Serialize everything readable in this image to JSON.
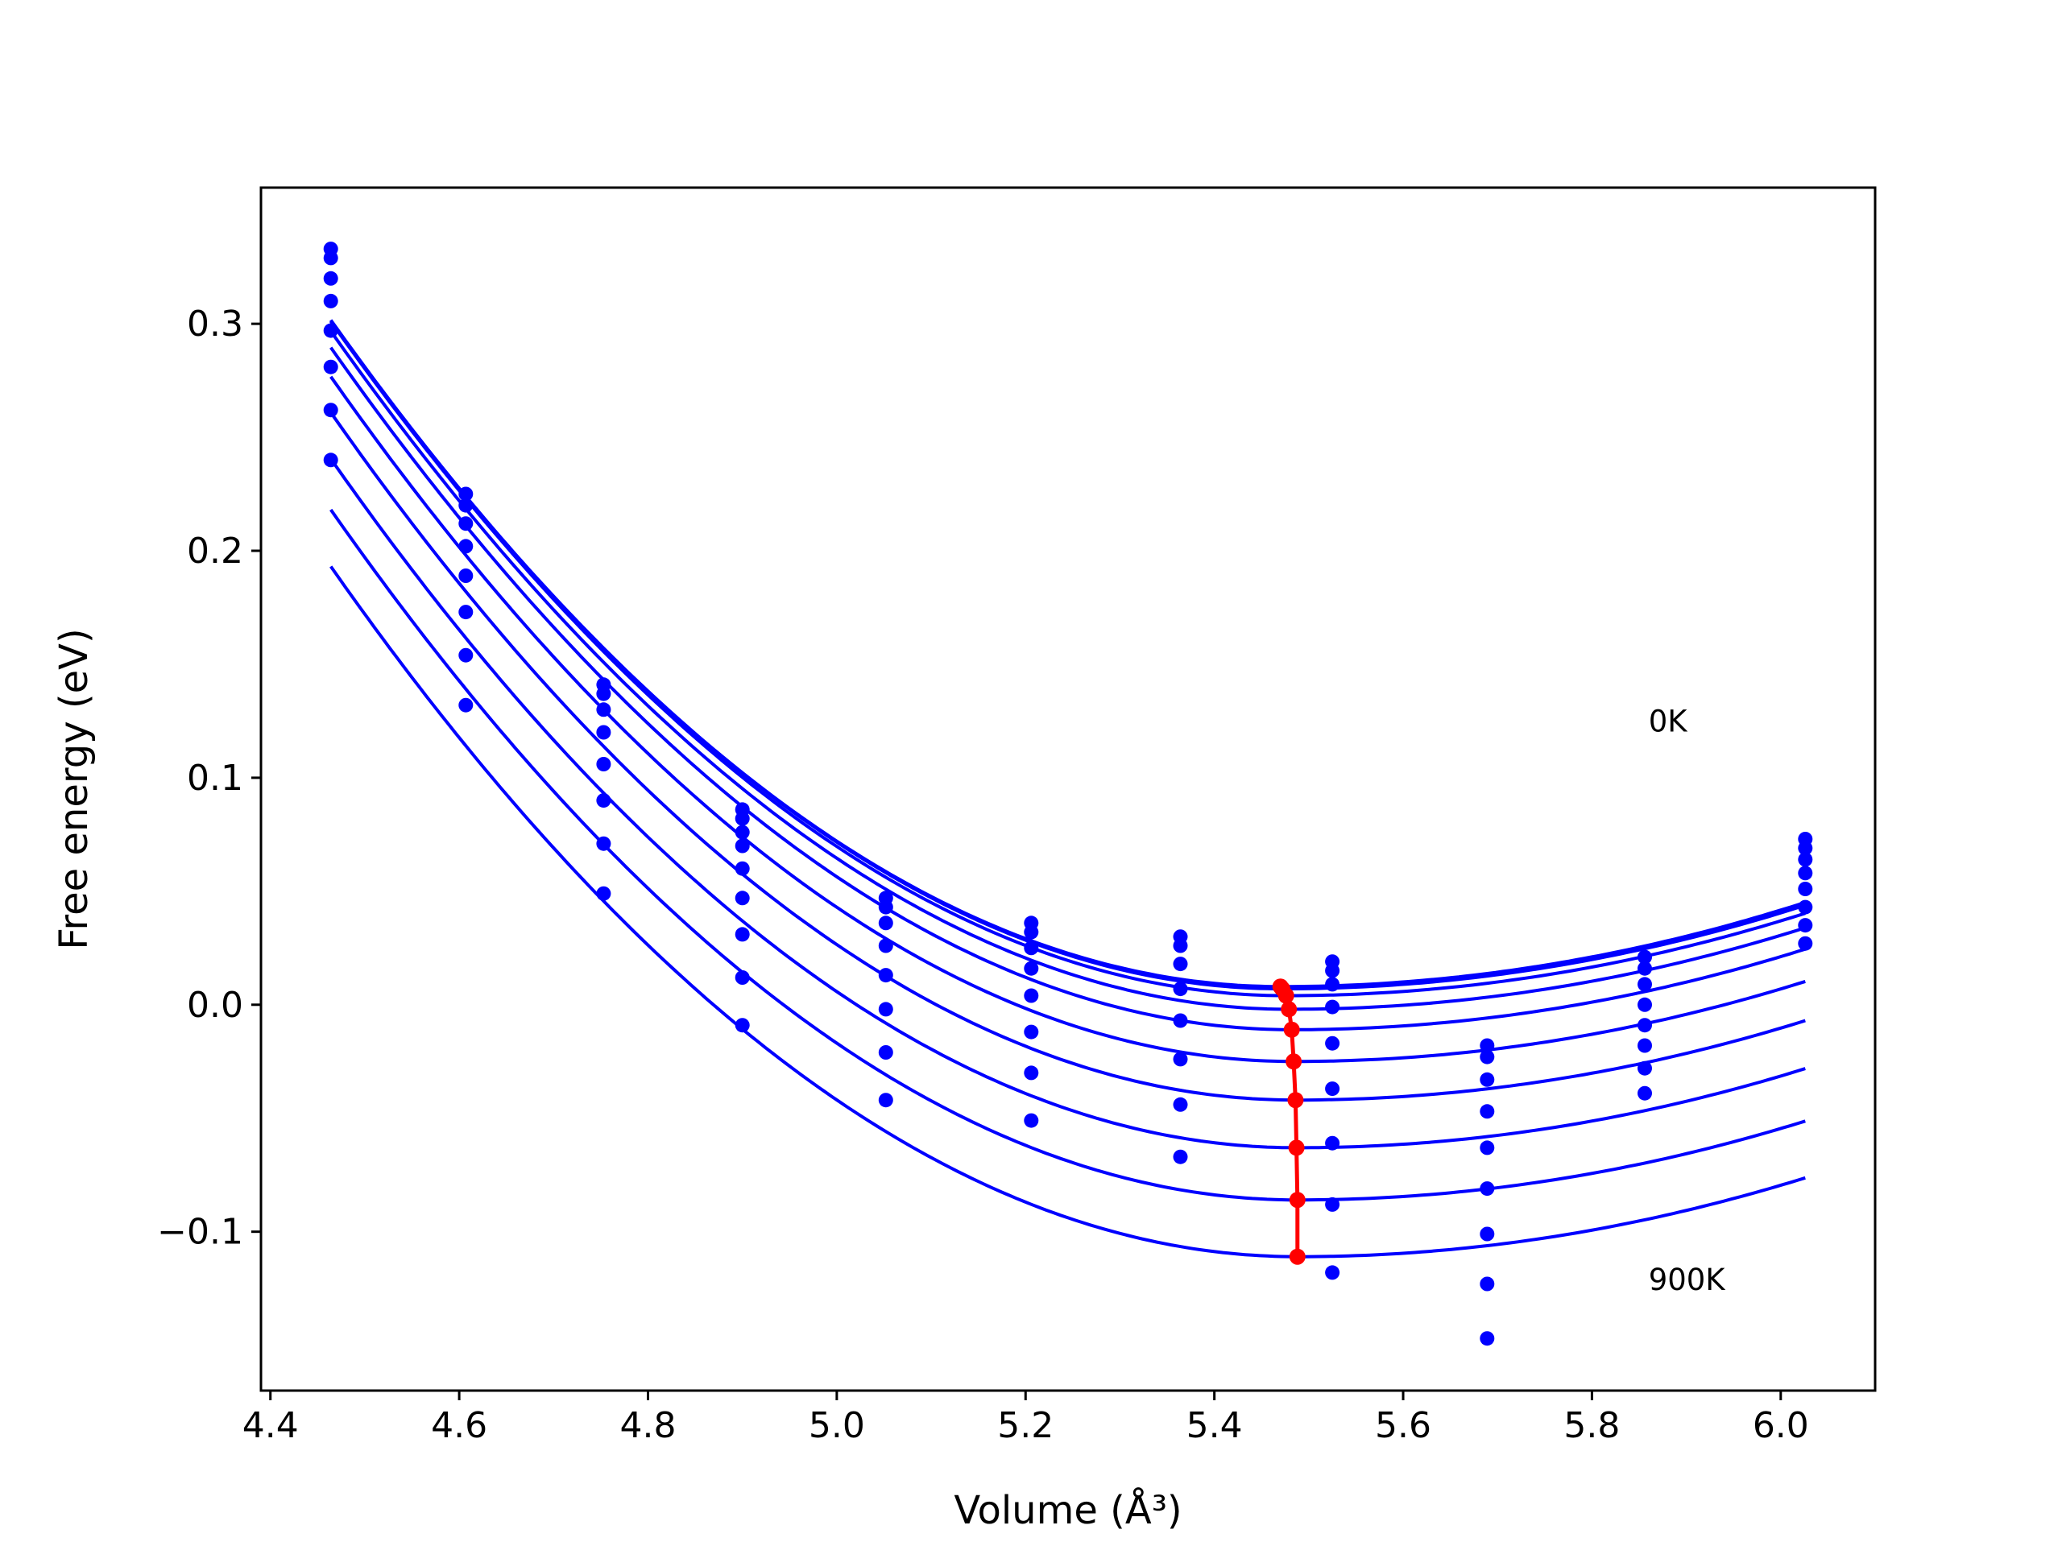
{
  "chart_data": {
    "type": "scatter",
    "title": "",
    "xlabel": "Volume (Å³)",
    "ylabel": "Free energy (eV)",
    "xlim": [
      4.39,
      6.1
    ],
    "ylim": [
      -0.17,
      0.36
    ],
    "x_ticks": [
      4.4,
      4.6,
      4.8,
      5.0,
      5.2,
      5.4,
      5.6,
      5.8,
      6.0
    ],
    "x_tick_labels": [
      "4.4",
      "4.6",
      "4.8",
      "5.0",
      "5.2",
      "5.4",
      "5.6",
      "5.8",
      "6.0"
    ],
    "y_ticks": [
      -0.1,
      0.0,
      0.1,
      0.2,
      0.3
    ],
    "y_tick_labels": [
      "−0.1",
      "0.0",
      "0.1",
      "0.2",
      "0.3"
    ],
    "grid": false,
    "annotations": [
      {
        "text": "0K",
        "x": 5.86,
        "y": 0.125
      },
      {
        "text": "900K",
        "x": 5.86,
        "y": -0.121
      }
    ],
    "volumes": [
      4.464,
      4.607,
      4.753,
      4.9,
      5.052,
      5.206,
      5.364,
      5.525,
      5.689,
      5.856,
      6.026
    ],
    "curve_color": "#0000ff",
    "minima_color": "#ff0000",
    "fit_curves": [
      {
        "temperature": "0K",
        "v0": 5.47,
        "f0": 0.008,
        "a": 0.29,
        "b": 0.12
      },
      {
        "temperature": "100K",
        "v0": 5.472,
        "f0": 0.007,
        "a": 0.29,
        "b": 0.12
      },
      {
        "temperature": "200K",
        "v0": 5.476,
        "f0": 0.004,
        "a": 0.29,
        "b": 0.12
      },
      {
        "temperature": "300K",
        "v0": 5.479,
        "f0": -0.002,
        "a": 0.29,
        "b": 0.12
      },
      {
        "temperature": "400K",
        "v0": 5.482,
        "f0": -0.011,
        "a": 0.29,
        "b": 0.12
      },
      {
        "temperature": "500K",
        "v0": 5.484,
        "f0": -0.025,
        "a": 0.29,
        "b": 0.12
      },
      {
        "temperature": "600K",
        "v0": 5.486,
        "f0": -0.042,
        "a": 0.29,
        "b": 0.12
      },
      {
        "temperature": "700K",
        "v0": 5.487,
        "f0": -0.063,
        "a": 0.29,
        "b": 0.12
      },
      {
        "temperature": "800K",
        "v0": 5.488,
        "f0": -0.086,
        "a": 0.29,
        "b": 0.12
      },
      {
        "temperature": "900K",
        "v0": 5.488,
        "f0": -0.111,
        "a": 0.29,
        "b": 0.12
      }
    ],
    "data_points": [
      {
        "x": 4.464,
        "y": [
          0.333,
          0.329,
          0.32,
          0.31,
          0.297,
          0.281,
          0.262,
          0.24
        ]
      },
      {
        "x": 4.607,
        "y": [
          0.225,
          0.22,
          0.212,
          0.202,
          0.189,
          0.173,
          0.154,
          0.132
        ]
      },
      {
        "x": 4.753,
        "y": [
          0.141,
          0.137,
          0.13,
          0.12,
          0.106,
          0.09,
          0.071,
          0.049
        ]
      },
      {
        "x": 4.9,
        "y": [
          0.086,
          0.082,
          0.076,
          0.07,
          0.06,
          0.047,
          0.031,
          0.012,
          -0.009
        ]
      },
      {
        "x": 5.052,
        "y": [
          0.047,
          0.043,
          0.036,
          0.026,
          0.013,
          -0.002,
          -0.021,
          -0.042
        ]
      },
      {
        "x": 5.206,
        "y": [
          0.036,
          0.032,
          0.025,
          0.016,
          0.004,
          -0.012,
          -0.03,
          -0.051
        ]
      },
      {
        "x": 5.364,
        "y": [
          0.03,
          0.026,
          0.018,
          0.007,
          -0.007,
          -0.024,
          -0.044,
          -0.067
        ]
      },
      {
        "x": 5.525,
        "y": [
          0.019,
          0.015,
          0.009,
          -0.001,
          -0.017,
          -0.037,
          -0.061,
          -0.088,
          -0.118
        ]
      },
      {
        "x": 5.689,
        "y": [
          -0.018,
          -0.023,
          -0.033,
          -0.047,
          -0.063,
          -0.081,
          -0.101,
          -0.123,
          -0.147
        ]
      },
      {
        "x": 5.856,
        "y": [
          0.021,
          0.016,
          0.009,
          0.0,
          -0.009,
          -0.018,
          -0.028,
          -0.039
        ]
      },
      {
        "x": 6.026,
        "y": [
          0.073,
          0.069,
          0.064,
          0.058,
          0.051,
          0.043,
          0.035,
          0.027
        ]
      }
    ],
    "minima_path": [
      {
        "x": 5.47,
        "y": 0.008
      },
      {
        "x": 5.472,
        "y": 0.007
      },
      {
        "x": 5.476,
        "y": 0.004
      },
      {
        "x": 5.479,
        "y": -0.002
      },
      {
        "x": 5.482,
        "y": -0.011
      },
      {
        "x": 5.484,
        "y": -0.025
      },
      {
        "x": 5.486,
        "y": -0.042
      },
      {
        "x": 5.487,
        "y": -0.063
      },
      {
        "x": 5.488,
        "y": -0.086
      },
      {
        "x": 5.488,
        "y": -0.111
      }
    ]
  }
}
